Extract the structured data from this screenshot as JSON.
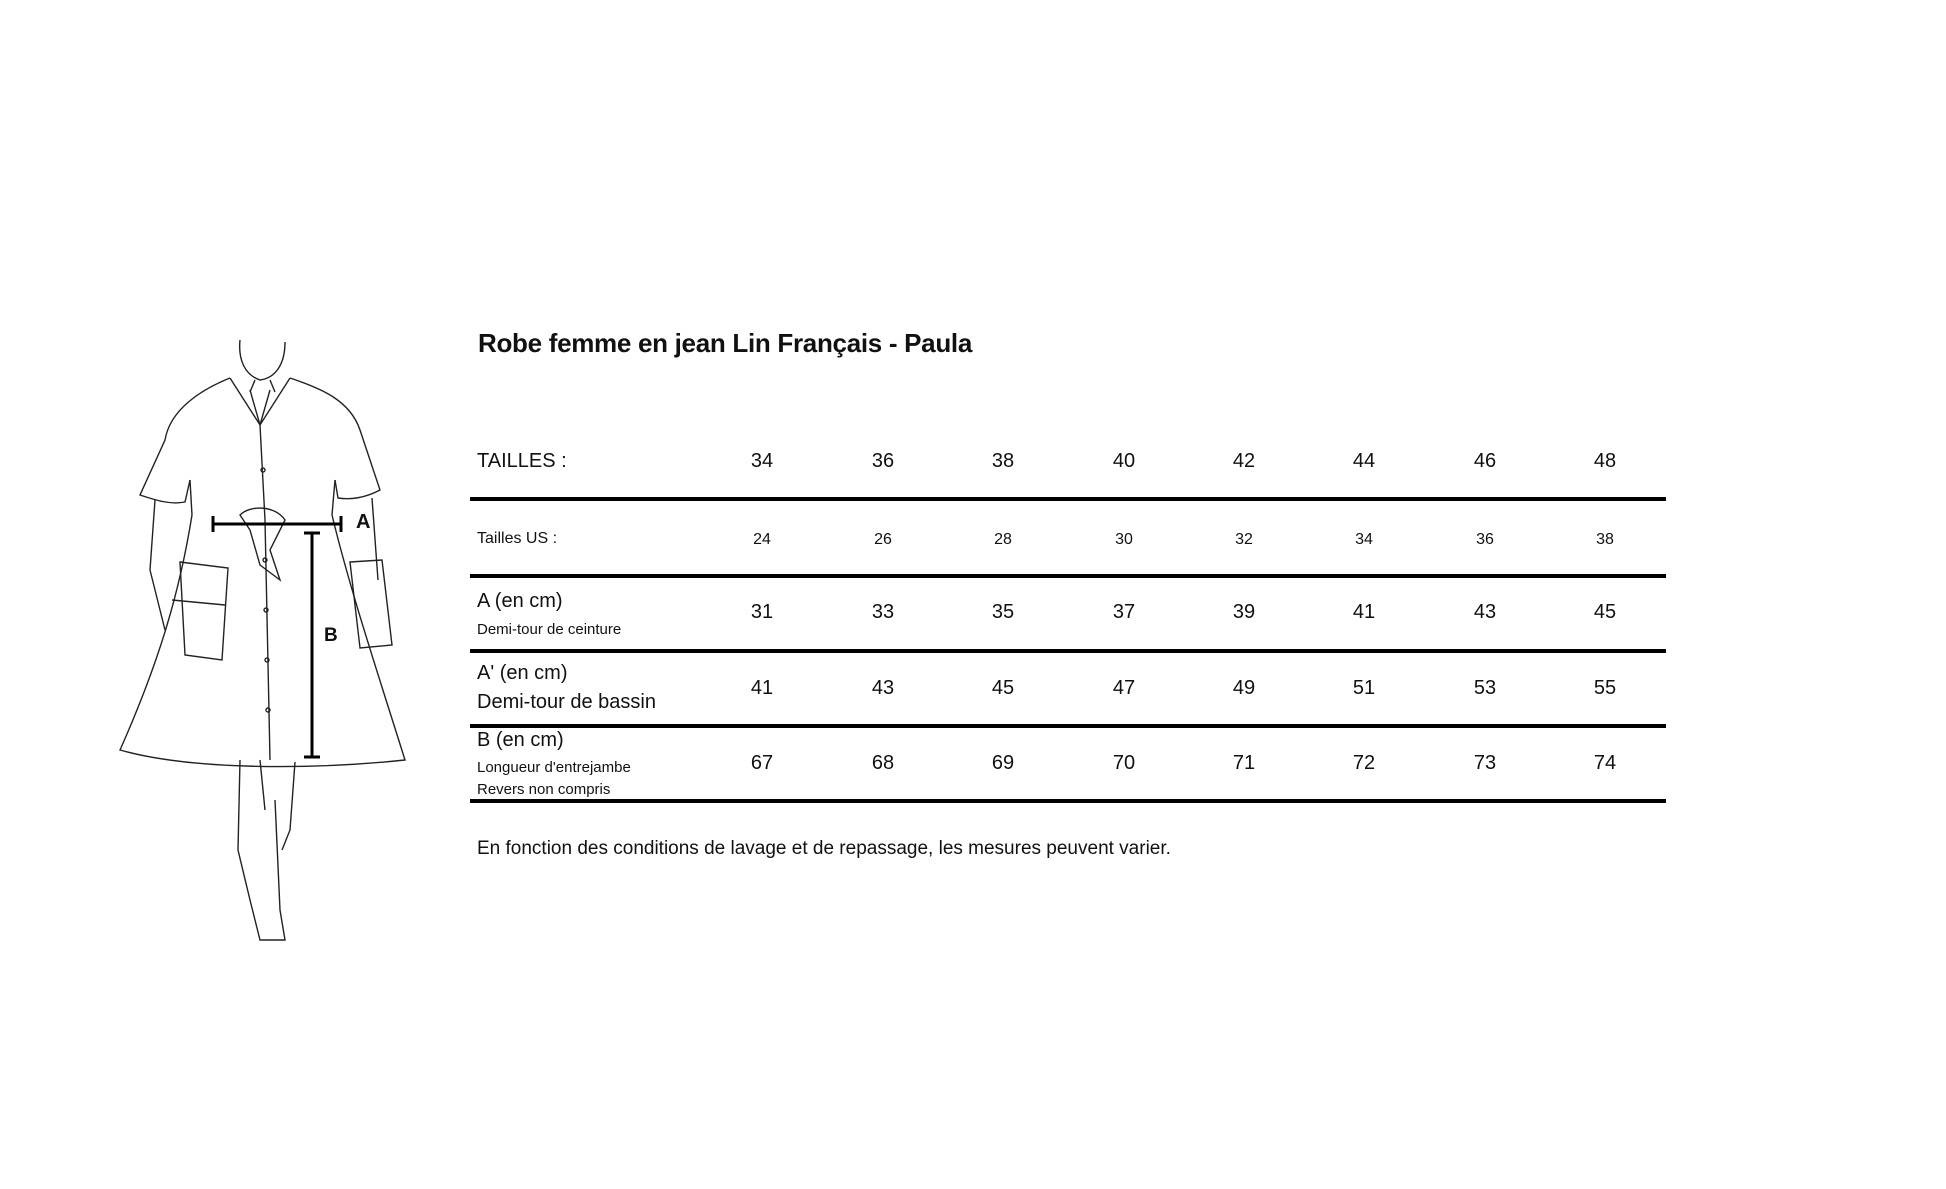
{
  "title": "Robe femme en jean Lin Français - Paula",
  "illustration": {
    "marker_a": "A",
    "marker_b": "B"
  },
  "table": {
    "sizes_label": "TAILLES :",
    "sizes": [
      "34",
      "36",
      "38",
      "40",
      "42",
      "44",
      "46",
      "48"
    ],
    "rows": [
      {
        "label": "Tailles US :",
        "sub": [],
        "values": [
          "24",
          "26",
          "28",
          "30",
          "32",
          "34",
          "36",
          "38"
        ]
      },
      {
        "label": "A (en cm)",
        "sub": [
          "Demi-tour de ceinture"
        ],
        "values": [
          "31",
          "33",
          "35",
          "37",
          "39",
          "41",
          "43",
          "45"
        ]
      },
      {
        "label": "A' (en cm)",
        "sub": [
          "Demi-tour de bassin"
        ],
        "values": [
          "41",
          "43",
          "45",
          "47",
          "49",
          "51",
          "53",
          "55"
        ]
      },
      {
        "label": "B (en cm)",
        "sub": [
          "Longueur d'entrejambe",
          "Revers non compris"
        ],
        "values": [
          "67",
          "68",
          "69",
          "70",
          "71",
          "72",
          "73",
          "74"
        ]
      }
    ]
  },
  "note": "En fonction des conditions de lavage et de repassage, les mesures peuvent varier."
}
